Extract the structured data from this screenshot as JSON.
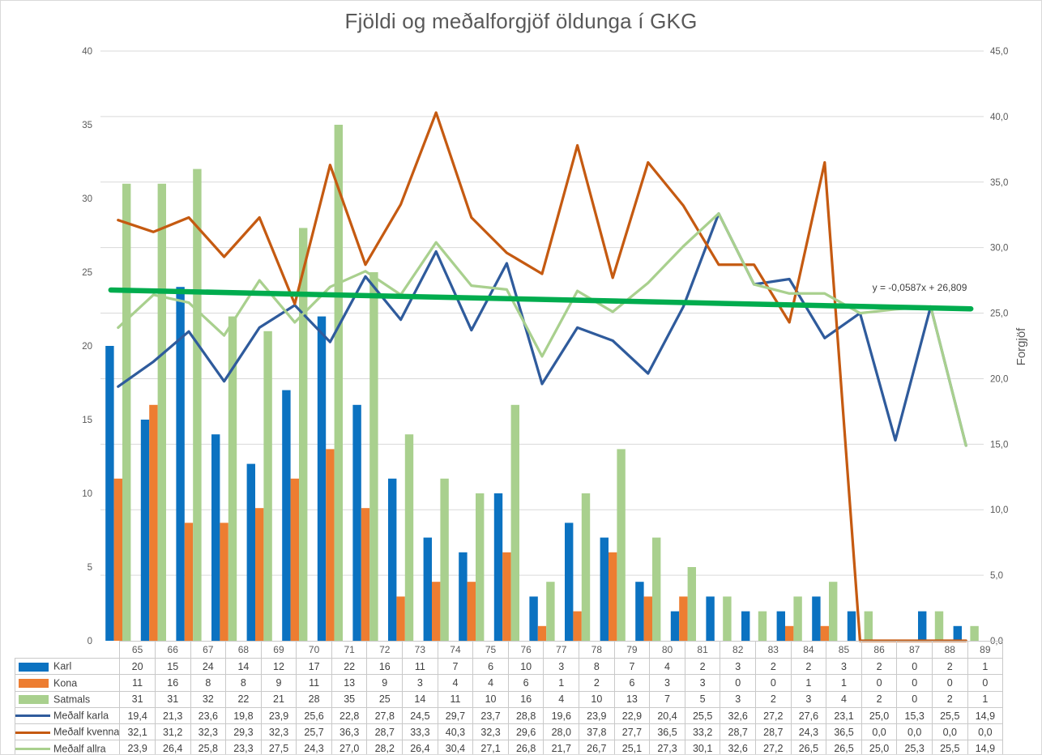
{
  "title": "Fjöldi og meðalforgjöf öldunga í GKG",
  "chart_data": {
    "type": "bar+line combo",
    "categories": [
      "65",
      "66",
      "67",
      "68",
      "69",
      "70",
      "71",
      "72",
      "73",
      "74",
      "75",
      "76",
      "77",
      "78",
      "79",
      "80",
      "81",
      "82",
      "83",
      "84",
      "85",
      "86",
      "87",
      "88",
      "89"
    ],
    "left_axis": {
      "min": 0,
      "max": 40,
      "step": 5,
      "tick_labels": [
        "0",
        "5",
        "10",
        "15",
        "20",
        "25",
        "30",
        "35",
        "40"
      ]
    },
    "right_axis": {
      "min": 0,
      "max": 45,
      "step": 5,
      "title": "Forgjöf",
      "tick_labels": [
        "0,0",
        "5,0",
        "10,0",
        "15,0",
        "20,0",
        "25,0",
        "30,0",
        "35,0",
        "40,0",
        "45,0"
      ]
    },
    "grid_color": "#D9D9D9",
    "series": [
      {
        "id": "karl",
        "name": "Karl",
        "type": "bar",
        "axis": "left",
        "decimals": 0,
        "color": "#0B72C1",
        "values": [
          20,
          15,
          24,
          14,
          12,
          17,
          22,
          16,
          11,
          7,
          6,
          10,
          3,
          8,
          7,
          4,
          2,
          3,
          2,
          2,
          3,
          2,
          0,
          2,
          1
        ]
      },
      {
        "id": "kona",
        "name": "Kona",
        "type": "bar",
        "axis": "left",
        "decimals": 0,
        "color": "#ED7D31",
        "values": [
          11,
          16,
          8,
          8,
          9,
          11,
          13,
          9,
          3,
          4,
          4,
          6,
          1,
          2,
          6,
          3,
          3,
          0,
          0,
          1,
          1,
          0,
          0,
          0,
          0
        ]
      },
      {
        "id": "satmals",
        "name": "Satmals",
        "type": "bar",
        "axis": "left",
        "decimals": 0,
        "color": "#A9D08E",
        "values": [
          31,
          31,
          32,
          22,
          21,
          28,
          35,
          25,
          14,
          11,
          10,
          16,
          4,
          10,
          13,
          7,
          5,
          3,
          2,
          3,
          4,
          2,
          0,
          2,
          1
        ]
      },
      {
        "id": "medalf-karla",
        "name": "Meðalf karla",
        "type": "line",
        "axis": "right",
        "decimals": 1,
        "color": "#2F5B9C",
        "values": [
          19.4,
          21.3,
          23.6,
          19.8,
          23.9,
          25.6,
          22.8,
          27.8,
          24.5,
          29.7,
          23.7,
          28.8,
          19.6,
          23.9,
          22.9,
          20.4,
          25.5,
          32.6,
          27.2,
          27.6,
          23.1,
          25.0,
          15.3,
          25.5,
          14.9
        ]
      },
      {
        "id": "medalf-kvenna",
        "name": "Meðalf kvenna",
        "type": "line",
        "axis": "right",
        "decimals": 1,
        "color": "#C55A11",
        "values": [
          32.1,
          31.2,
          32.3,
          29.3,
          32.3,
          25.7,
          36.3,
          28.7,
          33.3,
          40.3,
          32.3,
          29.6,
          28.0,
          37.8,
          27.7,
          36.5,
          33.2,
          28.7,
          28.7,
          24.3,
          36.5,
          0.0,
          0.0,
          0.0,
          0.0
        ]
      },
      {
        "id": "medalf-allra",
        "name": "Meðalf allra",
        "type": "line",
        "axis": "right",
        "decimals": 1,
        "color": "#A9D08E",
        "values": [
          23.9,
          26.4,
          25.8,
          23.3,
          27.5,
          24.3,
          27.0,
          28.2,
          26.4,
          30.4,
          27.1,
          26.8,
          21.7,
          26.7,
          25.1,
          27.3,
          30.1,
          32.6,
          27.2,
          26.5,
          26.5,
          25.0,
          25.3,
          25.5,
          14.9
        ]
      }
    ],
    "trendline": {
      "equation_label": "y = -0,0587x + 26,809",
      "slope": -0.0587,
      "intercept": 26.809,
      "color": "#00AC4E"
    }
  }
}
